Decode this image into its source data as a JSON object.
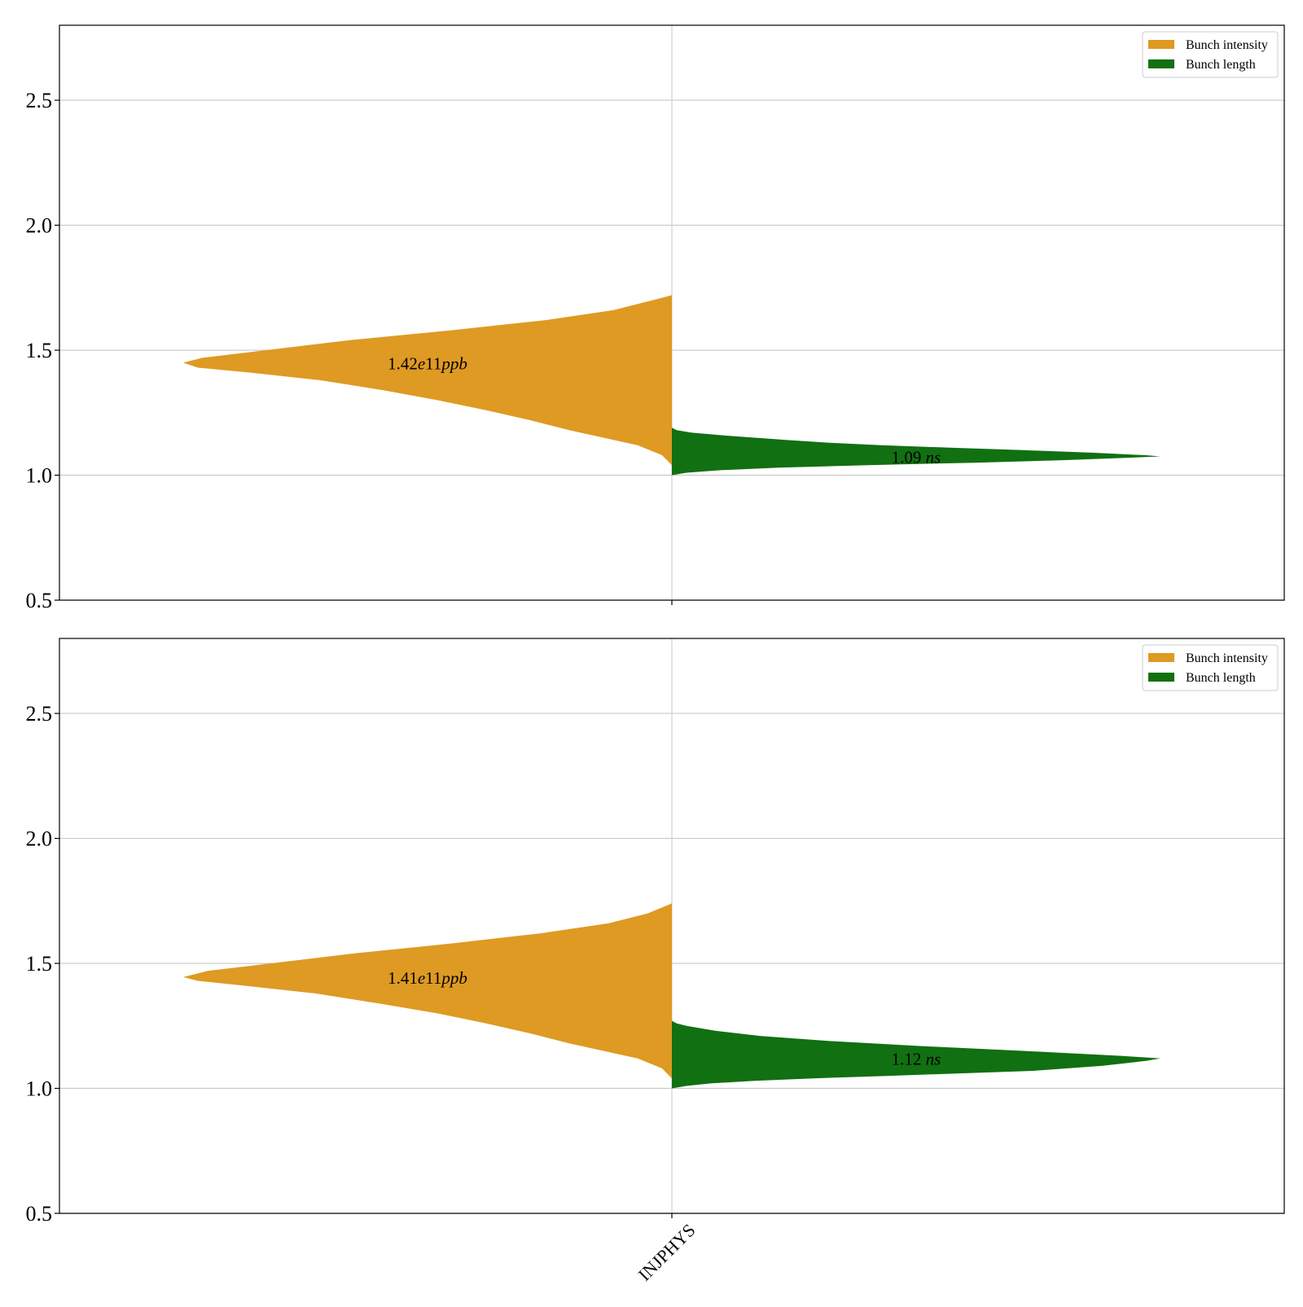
{
  "chart_data": [
    {
      "type": "violin",
      "panel": "top",
      "categories": [
        "INJPHYS"
      ],
      "show_category_labels": false,
      "ylim": [
        0.5,
        2.8
      ],
      "yticks": [
        0.5,
        1.0,
        1.5,
        2.0,
        2.5
      ],
      "grid": "y",
      "legend_placement": "top-right",
      "legend": [
        "Bunch intensity",
        "Bunch length"
      ],
      "series": [
        {
          "name": "Bunch intensity",
          "color": "#DE9A22",
          "side": "left",
          "annotation": {
            "value": "1.42",
            "exponent": "e11",
            "unit": "ppb"
          },
          "y_range": [
            1.04,
            1.72
          ],
          "density": [
            [
              1.04,
              0.0
            ],
            [
              1.08,
              0.02
            ],
            [
              1.12,
              0.07
            ],
            [
              1.15,
              0.14
            ],
            [
              1.18,
              0.21
            ],
            [
              1.22,
              0.29
            ],
            [
              1.26,
              0.38
            ],
            [
              1.3,
              0.48
            ],
            [
              1.34,
              0.59
            ],
            [
              1.38,
              0.72
            ],
            [
              1.41,
              0.86
            ],
            [
              1.43,
              0.97
            ],
            [
              1.45,
              1.0
            ],
            [
              1.47,
              0.96
            ],
            [
              1.5,
              0.83
            ],
            [
              1.54,
              0.66
            ],
            [
              1.58,
              0.45
            ],
            [
              1.62,
              0.26
            ],
            [
              1.66,
              0.12
            ],
            [
              1.7,
              0.04
            ],
            [
              1.72,
              0.0
            ]
          ]
        },
        {
          "name": "Bunch length",
          "color": "#117011",
          "side": "right",
          "annotation": {
            "value": "1.09",
            "unit": "ns"
          },
          "y_range": [
            1.0,
            1.19
          ],
          "density": [
            [
              1.0,
              0.0
            ],
            [
              1.01,
              0.03
            ],
            [
              1.02,
              0.1
            ],
            [
              1.03,
              0.22
            ],
            [
              1.04,
              0.4
            ],
            [
              1.05,
              0.62
            ],
            [
              1.06,
              0.8
            ],
            [
              1.07,
              0.94
            ],
            [
              1.075,
              1.0
            ],
            [
              1.08,
              0.97
            ],
            [
              1.09,
              0.86
            ],
            [
              1.1,
              0.72
            ],
            [
              1.11,
              0.57
            ],
            [
              1.12,
              0.43
            ],
            [
              1.13,
              0.32
            ],
            [
              1.14,
              0.24
            ],
            [
              1.15,
              0.17
            ],
            [
              1.16,
              0.1
            ],
            [
              1.17,
              0.04
            ],
            [
              1.18,
              0.01
            ],
            [
              1.19,
              0.0
            ]
          ]
        }
      ]
    },
    {
      "type": "violin",
      "panel": "bottom",
      "categories": [
        "INJPHYS"
      ],
      "show_category_labels": true,
      "ylim": [
        0.5,
        2.8
      ],
      "yticks": [
        0.5,
        1.0,
        1.5,
        2.0,
        2.5
      ],
      "grid": "y",
      "legend_placement": "top-right",
      "legend": [
        "Bunch intensity",
        "Bunch length"
      ],
      "series": [
        {
          "name": "Bunch intensity",
          "color": "#DE9A22",
          "side": "left",
          "annotation": {
            "value": "1.41",
            "exponent": "e11",
            "unit": "ppb"
          },
          "y_range": [
            1.04,
            1.74
          ],
          "density": [
            [
              1.04,
              0.0
            ],
            [
              1.08,
              0.02
            ],
            [
              1.12,
              0.07
            ],
            [
              1.15,
              0.14
            ],
            [
              1.18,
              0.21
            ],
            [
              1.22,
              0.29
            ],
            [
              1.26,
              0.38
            ],
            [
              1.3,
              0.48
            ],
            [
              1.34,
              0.6
            ],
            [
              1.38,
              0.73
            ],
            [
              1.41,
              0.87
            ],
            [
              1.43,
              0.97
            ],
            [
              1.445,
              1.0
            ],
            [
              1.47,
              0.95
            ],
            [
              1.5,
              0.82
            ],
            [
              1.54,
              0.65
            ],
            [
              1.58,
              0.45
            ],
            [
              1.62,
              0.27
            ],
            [
              1.66,
              0.13
            ],
            [
              1.7,
              0.05
            ],
            [
              1.74,
              0.0
            ]
          ]
        },
        {
          "name": "Bunch length",
          "color": "#117011",
          "side": "right",
          "annotation": {
            "value": "1.12",
            "unit": "ns"
          },
          "y_range": [
            1.0,
            1.27
          ],
          "density": [
            [
              1.0,
              0.0
            ],
            [
              1.01,
              0.03
            ],
            [
              1.02,
              0.08
            ],
            [
              1.03,
              0.17
            ],
            [
              1.04,
              0.29
            ],
            [
              1.05,
              0.44
            ],
            [
              1.06,
              0.59
            ],
            [
              1.07,
              0.74
            ],
            [
              1.09,
              0.88
            ],
            [
              1.11,
              0.97
            ],
            [
              1.12,
              1.0
            ],
            [
              1.13,
              0.92
            ],
            [
              1.15,
              0.72
            ],
            [
              1.17,
              0.5
            ],
            [
              1.19,
              0.32
            ],
            [
              1.21,
              0.18
            ],
            [
              1.23,
              0.09
            ],
            [
              1.25,
              0.03
            ],
            [
              1.26,
              0.01
            ],
            [
              1.27,
              0.0
            ]
          ]
        }
      ]
    }
  ]
}
